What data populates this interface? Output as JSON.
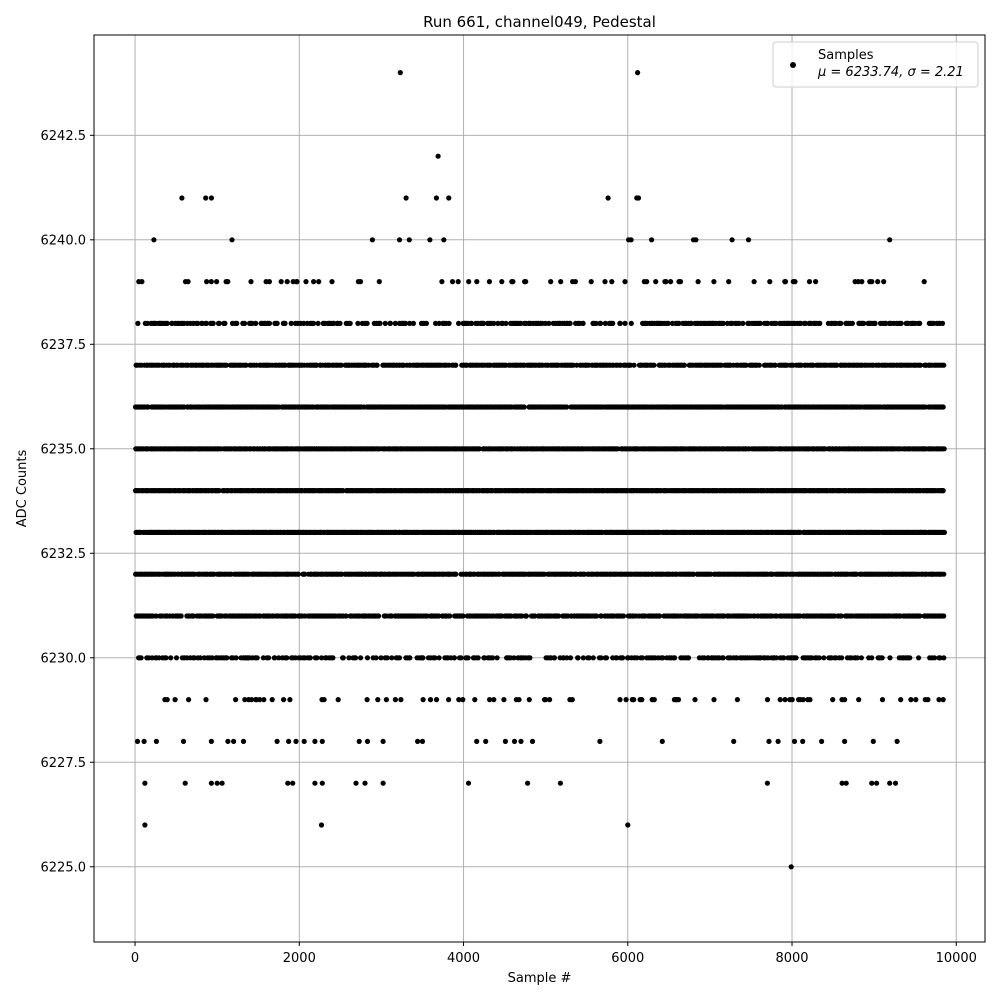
{
  "chart_data": {
    "type": "scatter",
    "title": "Run 661, channel049, Pedestal",
    "xlabel": "Sample #",
    "ylabel": "ADC Counts",
    "xlim": [
      -500,
      10350
    ],
    "ylim": [
      6223.2,
      6244.9
    ],
    "xticks": [
      0,
      2000,
      4000,
      6000,
      8000,
      10000
    ],
    "yticks": [
      6225.0,
      6227.5,
      6230.0,
      6232.5,
      6235.0,
      6237.5,
      6240.0,
      6242.5
    ],
    "xtick_labels": [
      "0",
      "2000",
      "4000",
      "6000",
      "8000",
      "10000"
    ],
    "ytick_labels": [
      "6225.0",
      "6227.5",
      "6230.0",
      "6232.5",
      "6235.0",
      "6237.5",
      "6240.0",
      "6242.5"
    ],
    "grid": true,
    "legend": {
      "position": "top-right",
      "series_label": "Samples",
      "stats_label": "μ = 6233.74, σ = 2.21"
    },
    "series": [
      {
        "name": "Samples",
        "color": "#000000",
        "n_samples": 9850,
        "mean": 6233.74,
        "std": 2.21,
        "dense_levels": [
          6229,
          6230,
          6231,
          6232,
          6233,
          6234,
          6235,
          6236,
          6237,
          6238,
          6239
        ],
        "outliers": [
          {
            "x": 3230,
            "y": 6244
          },
          {
            "x": 6120,
            "y": 6244
          },
          {
            "x": 3690,
            "y": 6242
          },
          {
            "x": 570,
            "y": 6241
          },
          {
            "x": 860,
            "y": 6241
          },
          {
            "x": 930,
            "y": 6241
          },
          {
            "x": 3300,
            "y": 6241
          },
          {
            "x": 3670,
            "y": 6241
          },
          {
            "x": 3820,
            "y": 6241
          },
          {
            "x": 5760,
            "y": 6241
          },
          {
            "x": 6110,
            "y": 6241
          },
          {
            "x": 6130,
            "y": 6241
          },
          {
            "x": 230,
            "y": 6240
          },
          {
            "x": 1180,
            "y": 6240
          },
          {
            "x": 2890,
            "y": 6240
          },
          {
            "x": 3220,
            "y": 6240
          },
          {
            "x": 3340,
            "y": 6240
          },
          {
            "x": 3590,
            "y": 6240
          },
          {
            "x": 3760,
            "y": 6240
          },
          {
            "x": 6010,
            "y": 6240
          },
          {
            "x": 6040,
            "y": 6240
          },
          {
            "x": 6290,
            "y": 6240
          },
          {
            "x": 6800,
            "y": 6240
          },
          {
            "x": 6830,
            "y": 6240
          },
          {
            "x": 7270,
            "y": 6240
          },
          {
            "x": 7470,
            "y": 6240
          },
          {
            "x": 9190,
            "y": 6240
          },
          {
            "x": 30,
            "y": 6228
          },
          {
            "x": 110,
            "y": 6228
          },
          {
            "x": 260,
            "y": 6228
          },
          {
            "x": 590,
            "y": 6228
          },
          {
            "x": 930,
            "y": 6228
          },
          {
            "x": 1130,
            "y": 6228
          },
          {
            "x": 1200,
            "y": 6228
          },
          {
            "x": 1320,
            "y": 6228
          },
          {
            "x": 1730,
            "y": 6228
          },
          {
            "x": 1870,
            "y": 6228
          },
          {
            "x": 1960,
            "y": 6228
          },
          {
            "x": 2060,
            "y": 6228
          },
          {
            "x": 2190,
            "y": 6228
          },
          {
            "x": 2280,
            "y": 6228
          },
          {
            "x": 2730,
            "y": 6228
          },
          {
            "x": 2830,
            "y": 6228
          },
          {
            "x": 3020,
            "y": 6228
          },
          {
            "x": 3440,
            "y": 6228
          },
          {
            "x": 3500,
            "y": 6228
          },
          {
            "x": 4160,
            "y": 6228
          },
          {
            "x": 4270,
            "y": 6228
          },
          {
            "x": 4510,
            "y": 6228
          },
          {
            "x": 4620,
            "y": 6228
          },
          {
            "x": 4700,
            "y": 6228
          },
          {
            "x": 4840,
            "y": 6228
          },
          {
            "x": 5660,
            "y": 6228
          },
          {
            "x": 6420,
            "y": 6228
          },
          {
            "x": 7290,
            "y": 6228
          },
          {
            "x": 7720,
            "y": 6228
          },
          {
            "x": 7830,
            "y": 6228
          },
          {
            "x": 8030,
            "y": 6228
          },
          {
            "x": 8130,
            "y": 6228
          },
          {
            "x": 8360,
            "y": 6228
          },
          {
            "x": 8640,
            "y": 6228
          },
          {
            "x": 8990,
            "y": 6228
          },
          {
            "x": 9280,
            "y": 6228
          },
          {
            "x": 120,
            "y": 6227
          },
          {
            "x": 610,
            "y": 6227
          },
          {
            "x": 930,
            "y": 6227
          },
          {
            "x": 1000,
            "y": 6227
          },
          {
            "x": 1060,
            "y": 6227
          },
          {
            "x": 1860,
            "y": 6227
          },
          {
            "x": 1920,
            "y": 6227
          },
          {
            "x": 2190,
            "y": 6227
          },
          {
            "x": 2280,
            "y": 6227
          },
          {
            "x": 2690,
            "y": 6227
          },
          {
            "x": 2800,
            "y": 6227
          },
          {
            "x": 3020,
            "y": 6227
          },
          {
            "x": 4060,
            "y": 6227
          },
          {
            "x": 4780,
            "y": 6227
          },
          {
            "x": 5180,
            "y": 6227
          },
          {
            "x": 7700,
            "y": 6227
          },
          {
            "x": 8610,
            "y": 6227
          },
          {
            "x": 8660,
            "y": 6227
          },
          {
            "x": 8970,
            "y": 6227
          },
          {
            "x": 9030,
            "y": 6227
          },
          {
            "x": 9190,
            "y": 6227
          },
          {
            "x": 9260,
            "y": 6227
          },
          {
            "x": 120,
            "y": 6226
          },
          {
            "x": 2270,
            "y": 6226
          },
          {
            "x": 6000,
            "y": 6226
          },
          {
            "x": 7990,
            "y": 6225
          }
        ]
      }
    ]
  }
}
